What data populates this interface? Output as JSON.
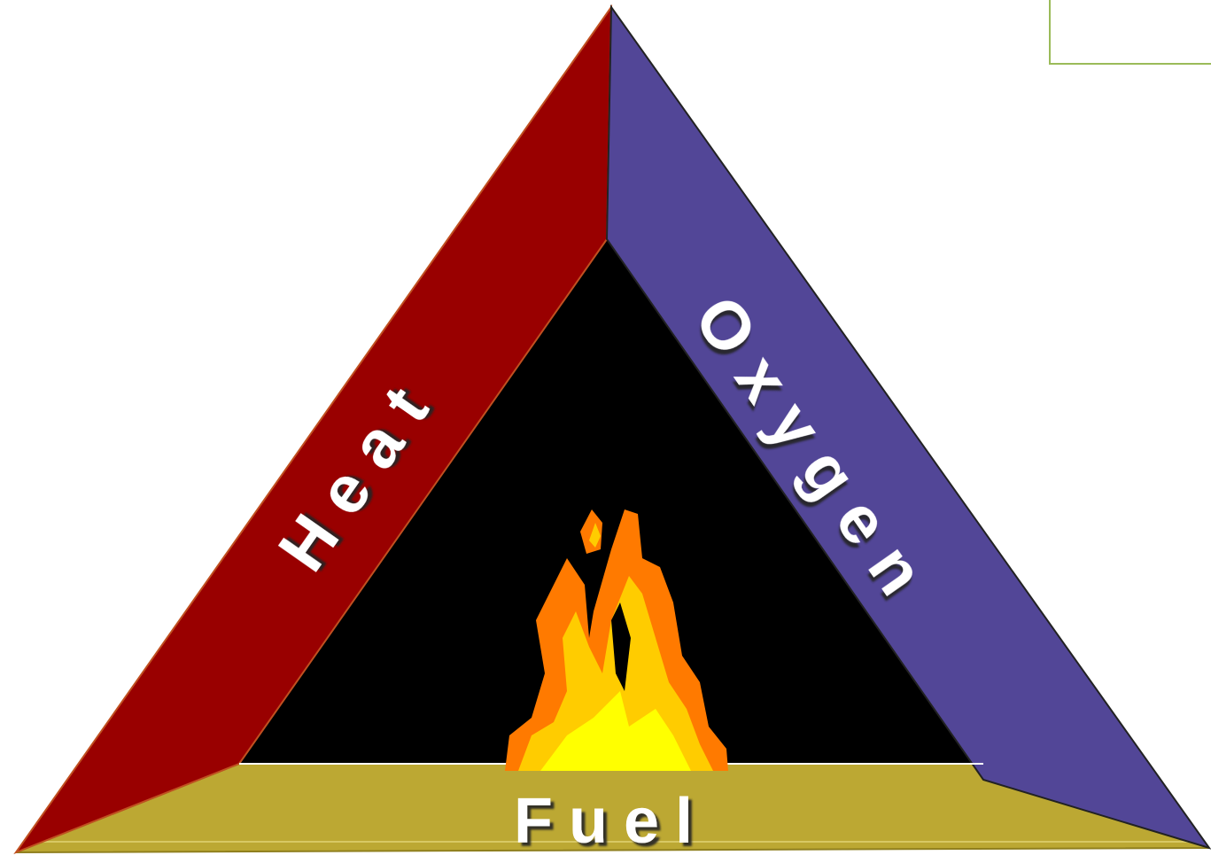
{
  "diagram": {
    "sides": [
      {
        "label": "Heat"
      },
      {
        "label": "Oxygen"
      },
      {
        "label": "Fuel"
      }
    ]
  }
}
